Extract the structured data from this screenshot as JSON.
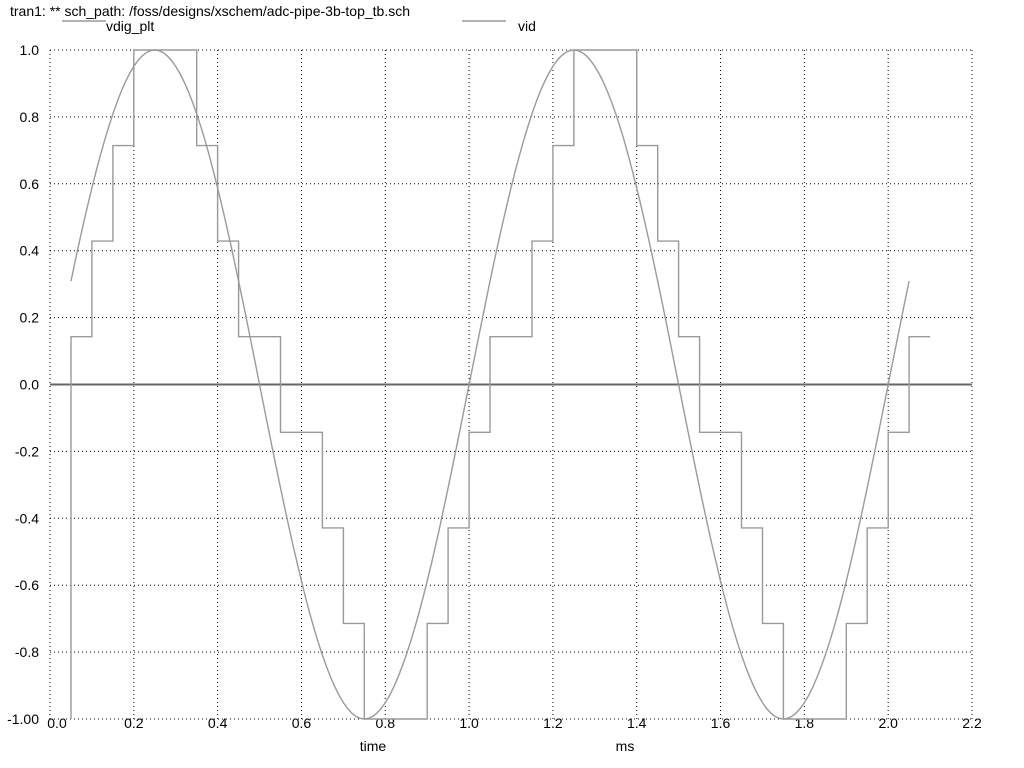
{
  "window": {
    "title": "tran1: ** sch_path: /foss/designs/xschem/adc-pipe-3b-top_tb.sch"
  },
  "colors": {
    "background": "#ffffff",
    "grid": "#000000",
    "zero_line": "#666666",
    "trace": "#9a9a9a"
  },
  "chart_data": {
    "type": "line",
    "title": "tran1: ** sch_path: /foss/designs/xschem/adc-pipe-3b-top_tb.sch",
    "xlabel": "time",
    "xunit": "ms",
    "ylabel": "",
    "xlim": [
      0.0,
      2.2
    ],
    "ylim": [
      -1.0,
      1.0
    ],
    "grid": true,
    "legend_position": "top",
    "x_ticks": [
      0.0,
      0.2,
      0.4,
      0.6,
      0.8,
      1.0,
      1.2,
      1.4,
      1.6,
      1.8,
      2.0,
      2.2
    ],
    "x_tick_labels": [
      "0.0",
      "0.2",
      "0.4",
      "0.6",
      "0.8",
      "1.0",
      "1.2",
      "1.4",
      "1.6",
      "1.8",
      "2.0",
      "2.2"
    ],
    "y_ticks": [
      -1.0,
      -0.8,
      -0.6,
      -0.4,
      -0.2,
      0.0,
      0.2,
      0.4,
      0.6,
      0.8,
      1.0
    ],
    "y_tick_labels": [
      "-1.00",
      "-0.8",
      "-0.6",
      "-0.4",
      "-0.2",
      "0.0",
      "0.2",
      "0.4",
      "0.6",
      "0.8",
      "1.0"
    ],
    "series": [
      {
        "name": "vdig_plt",
        "kind": "step",
        "color": "#9a9a9a",
        "x": [
          0.05,
          0.05,
          0.1,
          0.15,
          0.2,
          0.25,
          0.3,
          0.35,
          0.4,
          0.45,
          0.5,
          0.55,
          0.6,
          0.65,
          0.7,
          0.75,
          0.8,
          0.85,
          0.9,
          0.95,
          1.0,
          1.05,
          1.1,
          1.15,
          1.2,
          1.25,
          1.3,
          1.35,
          1.4,
          1.45,
          1.5,
          1.55,
          1.6,
          1.65,
          1.7,
          1.75,
          1.8,
          1.85,
          1.9,
          1.95,
          2.0,
          2.05
        ],
        "values": [
          -1.0,
          0.1429,
          0.4286,
          0.7143,
          1.0,
          1.0,
          1.0,
          0.7143,
          0.4286,
          0.1429,
          0.1429,
          -0.1429,
          -0.1429,
          -0.4286,
          -0.7143,
          -1.0,
          -1.0,
          -1.0,
          -0.7143,
          -0.4286,
          -0.1429,
          0.1429,
          0.1429,
          0.4286,
          0.7143,
          1.0,
          1.0,
          1.0,
          0.7143,
          0.4286,
          0.1429,
          -0.1429,
          -0.1429,
          -0.4286,
          -0.7143,
          -1.0,
          -1.0,
          -1.0,
          -0.7143,
          -0.4286,
          -0.1429,
          0.1429
        ]
      },
      {
        "name": "vid",
        "kind": "sine",
        "color": "#9a9a9a",
        "amplitude": 1.0,
        "frequency_khz": 1.0,
        "phase_deg": 0,
        "x_range": [
          0.05,
          2.05
        ],
        "samples": 201
      }
    ]
  }
}
